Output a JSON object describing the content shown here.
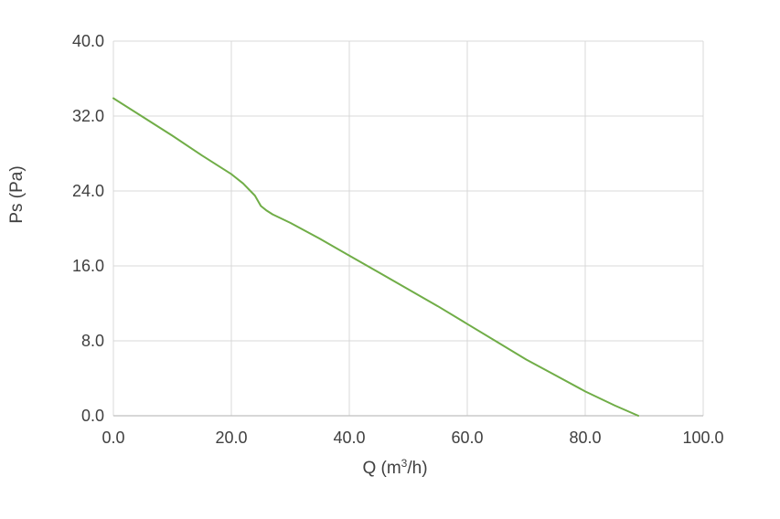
{
  "chart_data": {
    "type": "line",
    "xlabel_parts": [
      "Q (m",
      "3",
      "/h)"
    ],
    "ylabel": "Ps (Pa)",
    "xlim": [
      0,
      100
    ],
    "ylim": [
      0,
      40
    ],
    "x_ticks": [
      "0.0",
      "20.0",
      "40.0",
      "60.0",
      "80.0",
      "100.0"
    ],
    "y_ticks": [
      "0.0",
      "8.0",
      "16.0",
      "24.0",
      "32.0",
      "40.0"
    ],
    "grid": true,
    "series": [
      {
        "color": "#70ad47",
        "x": [
          0,
          5,
          10,
          15,
          20,
          22,
          24,
          25,
          26,
          27,
          30,
          35,
          40,
          45,
          50,
          55,
          60,
          65,
          70,
          75,
          80,
          85,
          89
        ],
        "y": [
          33.9,
          31.9,
          29.9,
          27.8,
          25.8,
          24.8,
          23.5,
          22.4,
          21.9,
          21.5,
          20.6,
          18.9,
          17.1,
          15.3,
          13.5,
          11.7,
          9.8,
          7.9,
          6.0,
          4.3,
          2.6,
          1.1,
          0.0
        ]
      }
    ]
  }
}
